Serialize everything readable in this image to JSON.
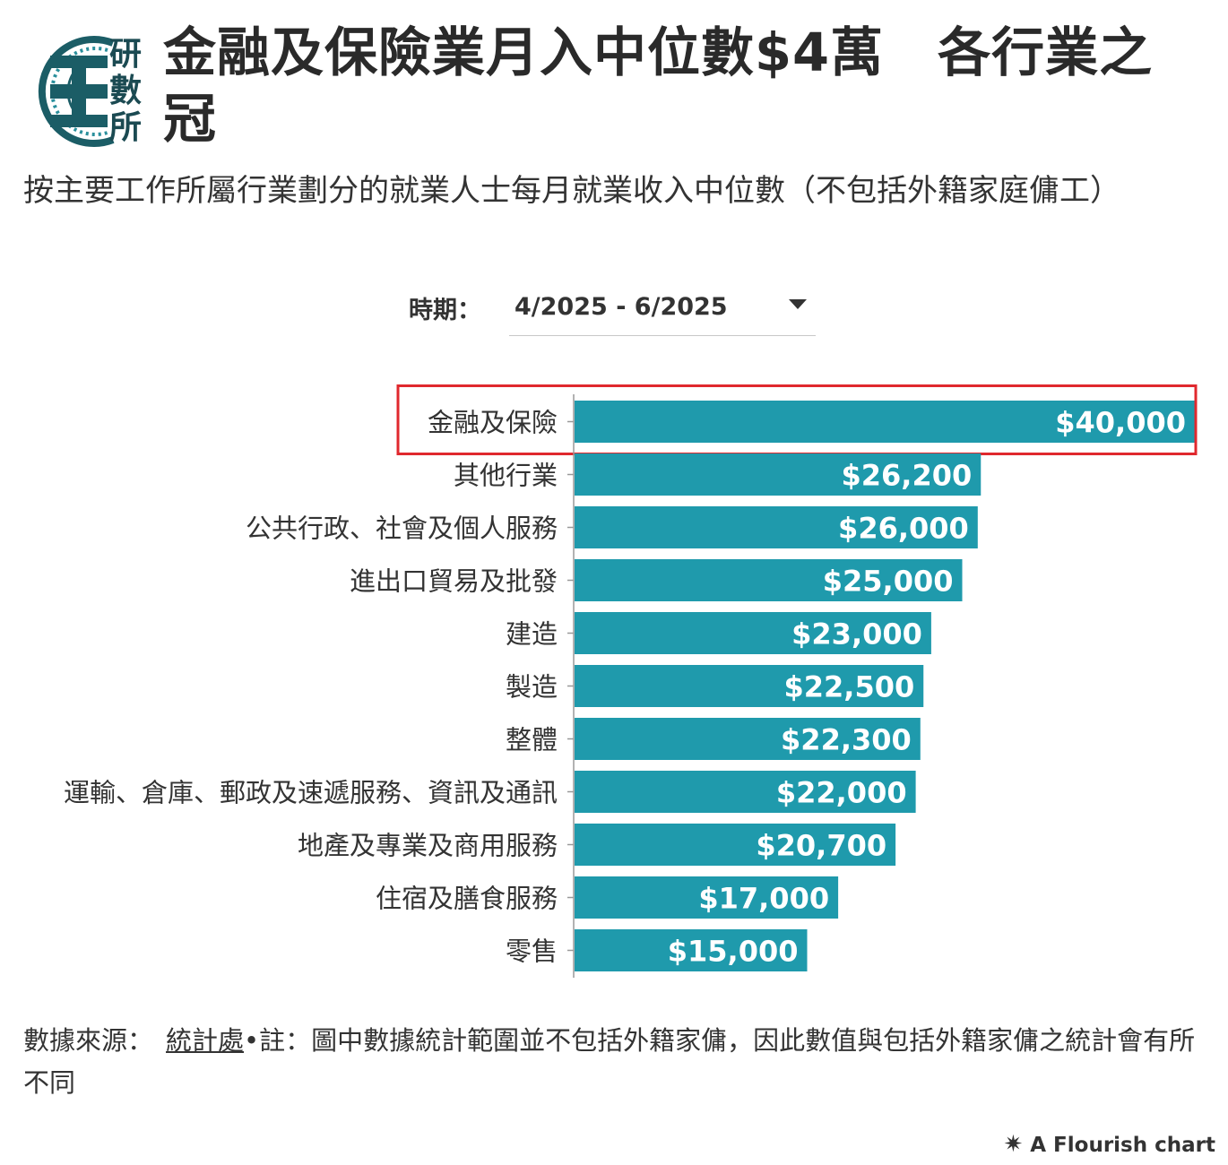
{
  "header": {
    "logo_text": [
      "研",
      "數",
      "所"
    ],
    "title_part1": "金融及保險業月入中位數$4萬",
    "title_part2": "各行業之冠",
    "subtitle": "按主要工作所屬行業劃分的就業人士每月就業收入中位數（不包括外籍家庭傭工）"
  },
  "filter": {
    "label": "時期：",
    "selected": "4/2025 - 6/2025"
  },
  "chart_data": {
    "type": "bar",
    "orientation": "horizontal",
    "categories": [
      "金融及保險",
      "其他行業",
      "公共行政、社會及個人服務",
      "進出口貿易及批發",
      "建造",
      "製造",
      "整體",
      "運輸、倉庫、郵政及速遞服務、資訊及通訊",
      "地產及專業及商用服務",
      "住宿及膳食服務",
      "零售"
    ],
    "values": [
      40000,
      26200,
      26000,
      25000,
      23000,
      22500,
      22300,
      22000,
      20700,
      17000,
      15000
    ],
    "value_labels": [
      "$40,000",
      "$26,200",
      "$26,000",
      "$25,000",
      "$23,000",
      "$22,500",
      "$22,300",
      "$22,000",
      "$20,700",
      "$17,000",
      "$15,000"
    ],
    "xlim": [
      0,
      40000
    ],
    "highlighted_category": "金融及保險",
    "bar_color": "#1f9aac",
    "highlight_color": "#e0282e",
    "grid": false
  },
  "footer": {
    "source_label": "數據來源：",
    "source_link": "統計處",
    "note": "•註：圖中數據統計範圍並不包括外籍家傭，因此數值與包括外籍家傭之統計會有所不同"
  },
  "credit": {
    "star": "✷",
    "text": "A Flourish chart"
  },
  "icons": {
    "logo": "research-institute-logo-icon",
    "dropdown": "caret-down-icon",
    "credit": "flourish-star-icon"
  }
}
